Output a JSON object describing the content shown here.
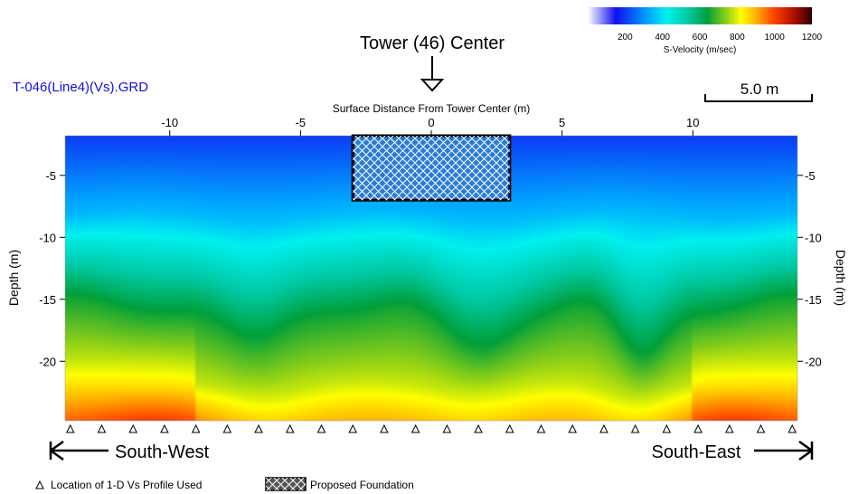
{
  "chart_data": {
    "type": "heatmap",
    "title": "Tower (46) Center",
    "grid_file_label": "T-046(Line4)(Vs).GRD",
    "x_axis_title": "Surface Distance From Tower Center (m)",
    "y_axis_title": "Depth (m)",
    "x_ticks": [
      "-10",
      "-5",
      "0",
      "5",
      "10"
    ],
    "y_ticks": [
      "-5",
      "-10",
      "-15",
      "-20"
    ],
    "x_range": [
      -14,
      14
    ],
    "y_range": [
      -1.8,
      -24.8
    ],
    "scale_bar_label": "5.0 m",
    "scale_bar_length_m": 5,
    "colorbar": {
      "label": "S-Velocity (m/sec)",
      "ticks": [
        "200",
        "400",
        "600",
        "800",
        "1000",
        "1200"
      ],
      "range": [
        0,
        1200
      ],
      "colormap": [
        {
          "value": 0,
          "color": "#ffffff"
        },
        {
          "value": 150,
          "color": "#1010f0"
        },
        {
          "value": 330,
          "color": "#00aaff"
        },
        {
          "value": 420,
          "color": "#00f0f0"
        },
        {
          "value": 540,
          "color": "#00c8a0"
        },
        {
          "value": 640,
          "color": "#009f3a"
        },
        {
          "value": 740,
          "color": "#8ccf18"
        },
        {
          "value": 820,
          "color": "#ffff00"
        },
        {
          "value": 900,
          "color": "#ffb000"
        },
        {
          "value": 1000,
          "color": "#ff4000"
        },
        {
          "value": 1100,
          "color": "#b01000"
        },
        {
          "value": 1200,
          "color": "#300000"
        }
      ]
    },
    "foundation": {
      "x_range": [
        -3,
        3
      ],
      "depth_range": [
        -1.8,
        -7
      ]
    },
    "profile_locations_x": [
      -13.8,
      -12.6,
      -11.4,
      -10.2,
      -9,
      -7.8,
      -6.6,
      -5.4,
      -4.2,
      -3,
      -1.8,
      -0.6,
      0.6,
      1.8,
      3,
      4.2,
      5.4,
      6.6,
      7.8,
      9,
      10.2,
      11.4,
      12.6,
      13.8
    ],
    "velocity_layers": {
      "description": "Approximate S-wave velocity (m/sec) by depth: low-velocity layer near surface, increasing with depth; green layer undulates with troughs near x=-6.5, 1.5 and 8",
      "surface_vs": 200,
      "mid_depth_vs": 450,
      "deep_vs": 650,
      "base_vs": 900
    },
    "legend": [
      {
        "symbol": "triangle",
        "label": "Location of 1-D Vs Profile Used"
      },
      {
        "symbol": "crosshatch",
        "label": "Proposed Foundation"
      }
    ],
    "direction_left": "South-West",
    "direction_right": "South-East"
  }
}
